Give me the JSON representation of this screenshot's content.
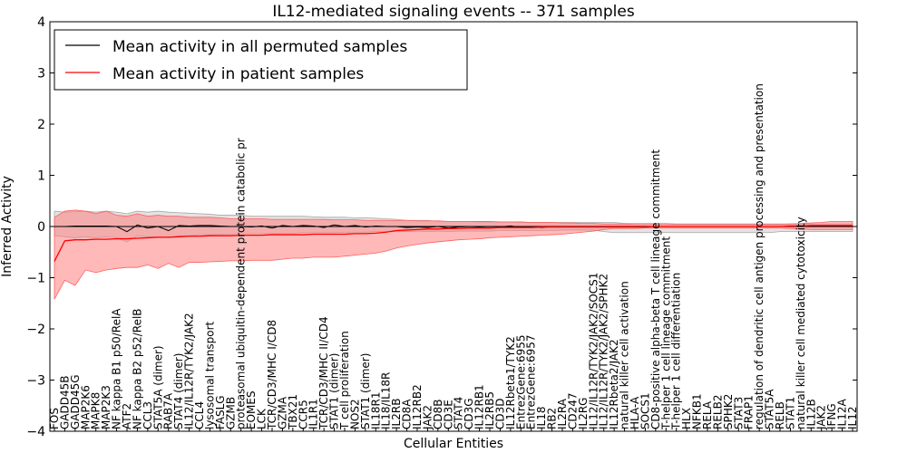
{
  "chart_data": {
    "type": "line",
    "title": "IL12-mediated signaling events -- 371 samples",
    "xlabel": "Cellular Entities",
    "ylabel": "Inferred Activity",
    "ylim": [
      -4,
      4
    ],
    "yticks": [
      -4,
      -3,
      -2,
      -1,
      0,
      1,
      2,
      3,
      4
    ],
    "grid": false,
    "legend_position": "top-left",
    "categories": [
      "FOS",
      "GADD45B",
      "GADD45G",
      "MAP2K6",
      "MAPK8",
      "MAP2K3",
      "NF kappa B1 p50/RelA",
      "ATF2",
      "NF kappa B2 p52/RelB",
      "CCL3",
      "STAT5A (dimer)",
      "RAB7A",
      "STAT4 (dimer)",
      "IL12/IL12R/TYK2/JAK2",
      "CCL4",
      "lysosomal transport",
      "FASLG",
      "GZMB",
      "proteasomal ubiquitin-dependent protein catabolic pr",
      "EOMES",
      "LCK",
      "TCR/CD3/MHC I/CD8",
      "GZMA",
      "TBX21",
      "CCR5",
      "IL1R1",
      "TCR/CD3/MHC II/CD4",
      "STAT1 (dimer)",
      "T cell proliferation",
      "NOS2",
      "STAT1 (dimer)",
      "IL18R1",
      "IL18/IL18R",
      "IL2RB",
      "CD8A",
      "IL12RB2",
      "JAK2",
      "CD8B",
      "CD3E",
      "STAT4",
      "CD3G",
      "IL12RB1",
      "IL2RB5",
      "CD3D",
      "IL12Rbeta1/TYK2",
      "EntrezGene:6955",
      "EntrezGene:6957",
      "IL18",
      "RB2",
      "IL2RA",
      "CD247",
      "IL2RG",
      "IL12/IL12R/TYK2/JAK2/SOCS1",
      "IL12/IL12R/TYK2/JAK2/SPHK2",
      "IL12Rbeta2/JAK2",
      "natural killer cell activation",
      "HLA-A",
      "SOCS1",
      "CD8-positive alpha-beta T cell lineage commitment",
      "T-helper 1 cell lineage commitment",
      "T-helper 1 cell differentiation",
      "HLX",
      "NFKB1",
      "RELA",
      "RELB2",
      "SPHK2",
      "STAT3",
      "FRAP1",
      "regulation of dendritic cell antigen processing and presentation",
      "STAT5A",
      "RELB",
      "STAT1",
      "natural killer cell mediated cytotoxicity",
      "IL12B",
      "JAK2",
      "IFNG",
      "IL12A",
      "IL12"
    ],
    "series": [
      {
        "name": "Mean activity in all permuted samples",
        "color": "#000000",
        "values": [
          0.0,
          0.0,
          0.01,
          0.01,
          0.01,
          0.01,
          0.0,
          -0.1,
          0.03,
          -0.03,
          0.0,
          -0.08,
          0.02,
          0.01,
          0.02,
          0.02,
          0.01,
          0.0,
          0.0,
          -0.01,
          0.01,
          -0.03,
          0.02,
          0.0,
          0.02,
          0.01,
          -0.02,
          0.03,
          0.0,
          0.02,
          -0.01,
          0.01,
          0.0,
          0.0,
          -0.02,
          -0.01,
          -0.02,
          0.0,
          -0.03,
          -0.01,
          0.0,
          -0.01,
          0.0,
          -0.01,
          0.01,
          -0.02,
          0.0,
          -0.02,
          0.0,
          -0.01,
          0.0,
          0.0,
          0.0,
          0.0,
          0.0,
          0.0,
          0.0,
          0.0,
          0.0,
          0.0,
          0.0,
          0.0,
          0.0,
          0.0,
          0.0,
          0.0,
          0.0,
          0.0,
          0.0,
          0.0,
          0.0,
          0.0,
          0.0,
          0.0,
          0.0,
          0.0,
          0.0,
          0.0
        ],
        "lower": [
          -0.18,
          -0.2,
          -0.22,
          -0.2,
          -0.22,
          -0.2,
          -0.22,
          -0.3,
          -0.18,
          -0.2,
          -0.2,
          -0.22,
          -0.18,
          -0.18,
          -0.16,
          -0.16,
          -0.15,
          -0.15,
          -0.14,
          -0.14,
          -0.14,
          -0.14,
          -0.13,
          -0.13,
          -0.12,
          -0.12,
          -0.12,
          -0.12,
          -0.11,
          -0.11,
          -0.11,
          -0.1,
          -0.1,
          -0.1,
          -0.1,
          -0.09,
          -0.1,
          -0.09,
          -0.1,
          -0.09,
          -0.09,
          -0.09,
          -0.09,
          -0.08,
          -0.08,
          -0.08,
          -0.08,
          -0.08,
          -0.08,
          -0.07,
          -0.07,
          -0.07,
          -0.07,
          -0.1,
          -0.12,
          -0.12,
          -0.12,
          -0.12,
          -0.12,
          -0.12,
          -0.12,
          -0.12,
          -0.12,
          -0.12,
          -0.12,
          -0.12,
          -0.12,
          -0.12,
          -0.12,
          -0.12,
          -0.1,
          -0.1,
          -0.1,
          -0.1,
          -0.1,
          -0.1,
          -0.1,
          -0.1
        ],
        "upper": [
          0.3,
          0.28,
          0.29,
          0.3,
          0.28,
          0.3,
          0.28,
          0.25,
          0.3,
          0.28,
          0.3,
          0.28,
          0.27,
          0.26,
          0.25,
          0.24,
          0.22,
          0.22,
          0.22,
          0.2,
          0.2,
          0.2,
          0.2,
          0.2,
          0.2,
          0.19,
          0.18,
          0.18,
          0.18,
          0.17,
          0.17,
          0.16,
          0.15,
          0.14,
          0.12,
          0.12,
          0.12,
          0.1,
          0.1,
          0.1,
          0.1,
          0.09,
          0.09,
          0.09,
          0.09,
          0.08,
          0.08,
          0.08,
          0.08,
          0.08,
          0.08,
          0.08,
          0.08,
          0.08,
          0.08,
          0.06,
          0.06,
          0.06,
          0.06,
          0.06,
          0.05,
          0.05,
          0.05,
          0.05,
          0.05,
          0.05,
          0.05,
          0.05,
          0.05,
          0.05,
          0.05,
          0.05,
          0.05,
          0.05,
          0.05,
          0.05,
          0.05,
          0.05
        ]
      },
      {
        "name": "Mean activity in patient samples",
        "color": "#ff0000",
        "values": [
          -0.68,
          -0.28,
          -0.26,
          -0.26,
          -0.25,
          -0.25,
          -0.24,
          -0.24,
          -0.23,
          -0.22,
          -0.21,
          -0.21,
          -0.2,
          -0.19,
          -0.19,
          -0.18,
          -0.18,
          -0.18,
          -0.17,
          -0.17,
          -0.17,
          -0.16,
          -0.16,
          -0.16,
          -0.16,
          -0.15,
          -0.15,
          -0.15,
          -0.15,
          -0.14,
          -0.14,
          -0.13,
          -0.11,
          -0.08,
          -0.07,
          -0.06,
          -0.05,
          -0.05,
          -0.04,
          -0.04,
          -0.03,
          -0.03,
          -0.03,
          -0.02,
          -0.02,
          -0.02,
          -0.02,
          -0.01,
          -0.01,
          -0.01,
          -0.01,
          -0.01,
          -0.01,
          -0.01,
          -0.01,
          -0.01,
          -0.01,
          -0.01,
          0.0,
          0.0,
          0.0,
          0.0,
          0.0,
          0.0,
          0.0,
          0.0,
          0.0,
          0.0,
          0.0,
          0.0,
          0.0,
          0.01,
          0.01,
          0.02,
          0.02,
          0.02,
          0.02,
          0.02
        ],
        "lower": [
          -1.42,
          -1.05,
          -1.15,
          -0.85,
          -0.9,
          -0.85,
          -0.82,
          -0.8,
          -0.8,
          -0.75,
          -0.82,
          -0.72,
          -0.8,
          -0.7,
          -0.7,
          -0.69,
          -0.68,
          -0.67,
          -0.67,
          -0.66,
          -0.66,
          -0.66,
          -0.64,
          -0.62,
          -0.62,
          -0.6,
          -0.6,
          -0.6,
          -0.58,
          -0.56,
          -0.54,
          -0.52,
          -0.48,
          -0.42,
          -0.38,
          -0.35,
          -0.32,
          -0.3,
          -0.28,
          -0.26,
          -0.25,
          -0.24,
          -0.22,
          -0.21,
          -0.2,
          -0.19,
          -0.18,
          -0.17,
          -0.16,
          -0.15,
          -0.13,
          -0.11,
          -0.09,
          -0.06,
          -0.04,
          -0.04,
          -0.04,
          -0.03,
          -0.03,
          -0.03,
          -0.03,
          -0.03,
          -0.03,
          -0.03,
          -0.03,
          -0.03,
          -0.03,
          -0.03,
          -0.03,
          -0.03,
          -0.03,
          -0.04,
          -0.05,
          -0.06,
          -0.06,
          -0.06,
          -0.06,
          -0.06
        ],
        "upper": [
          0.18,
          0.3,
          0.32,
          0.3,
          0.25,
          0.3,
          0.22,
          0.2,
          0.25,
          0.2,
          0.22,
          0.2,
          0.2,
          0.18,
          0.18,
          0.18,
          0.17,
          0.15,
          0.15,
          0.15,
          0.15,
          0.14,
          0.14,
          0.14,
          0.14,
          0.14,
          0.14,
          0.13,
          0.13,
          0.13,
          0.12,
          0.12,
          0.12,
          0.12,
          0.12,
          0.11,
          0.11,
          0.11,
          0.1,
          0.1,
          0.1,
          0.1,
          0.1,
          0.09,
          0.09,
          0.09,
          0.08,
          0.08,
          0.08,
          0.07,
          0.07,
          0.06,
          0.06,
          0.05,
          0.05,
          0.05,
          0.04,
          0.04,
          0.04,
          0.04,
          0.04,
          0.04,
          0.04,
          0.04,
          0.04,
          0.04,
          0.04,
          0.04,
          0.04,
          0.04,
          0.04,
          0.05,
          0.06,
          0.07,
          0.08,
          0.1,
          0.1,
          0.1
        ]
      }
    ]
  }
}
